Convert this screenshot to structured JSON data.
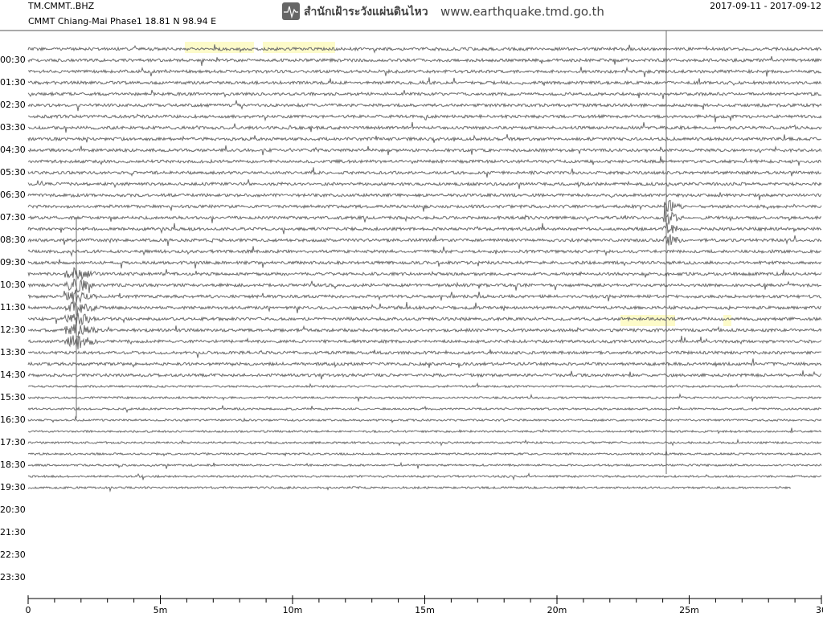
{
  "header": {
    "station": "TM.CMMT..BHZ",
    "site": "CMMT Chiang-Mai Phase1  18.81 N 98.94 E",
    "agency": "สำนักเฝ้าระวังแผ่นดินไหว",
    "url": "www.earthquake.tmd.go.th",
    "date_range": "2017-09-11 - 2017-09-12"
  },
  "row_labels": [
    "00:30",
    "01:30",
    "02:30",
    "03:30",
    "04:30",
    "05:30",
    "06:30",
    "07:30",
    "08:30",
    "09:30",
    "10:30",
    "11:30",
    "12:30",
    "13:30",
    "14:30",
    "15:30",
    "16:30",
    "17:30",
    "18:30",
    "19:30",
    "20:30",
    "21:30",
    "22:30",
    "23:30"
  ],
  "x_axis": {
    "labels": [
      "0",
      "5m",
      "10m",
      "15m",
      "20m",
      "25m",
      "30"
    ]
  }
}
